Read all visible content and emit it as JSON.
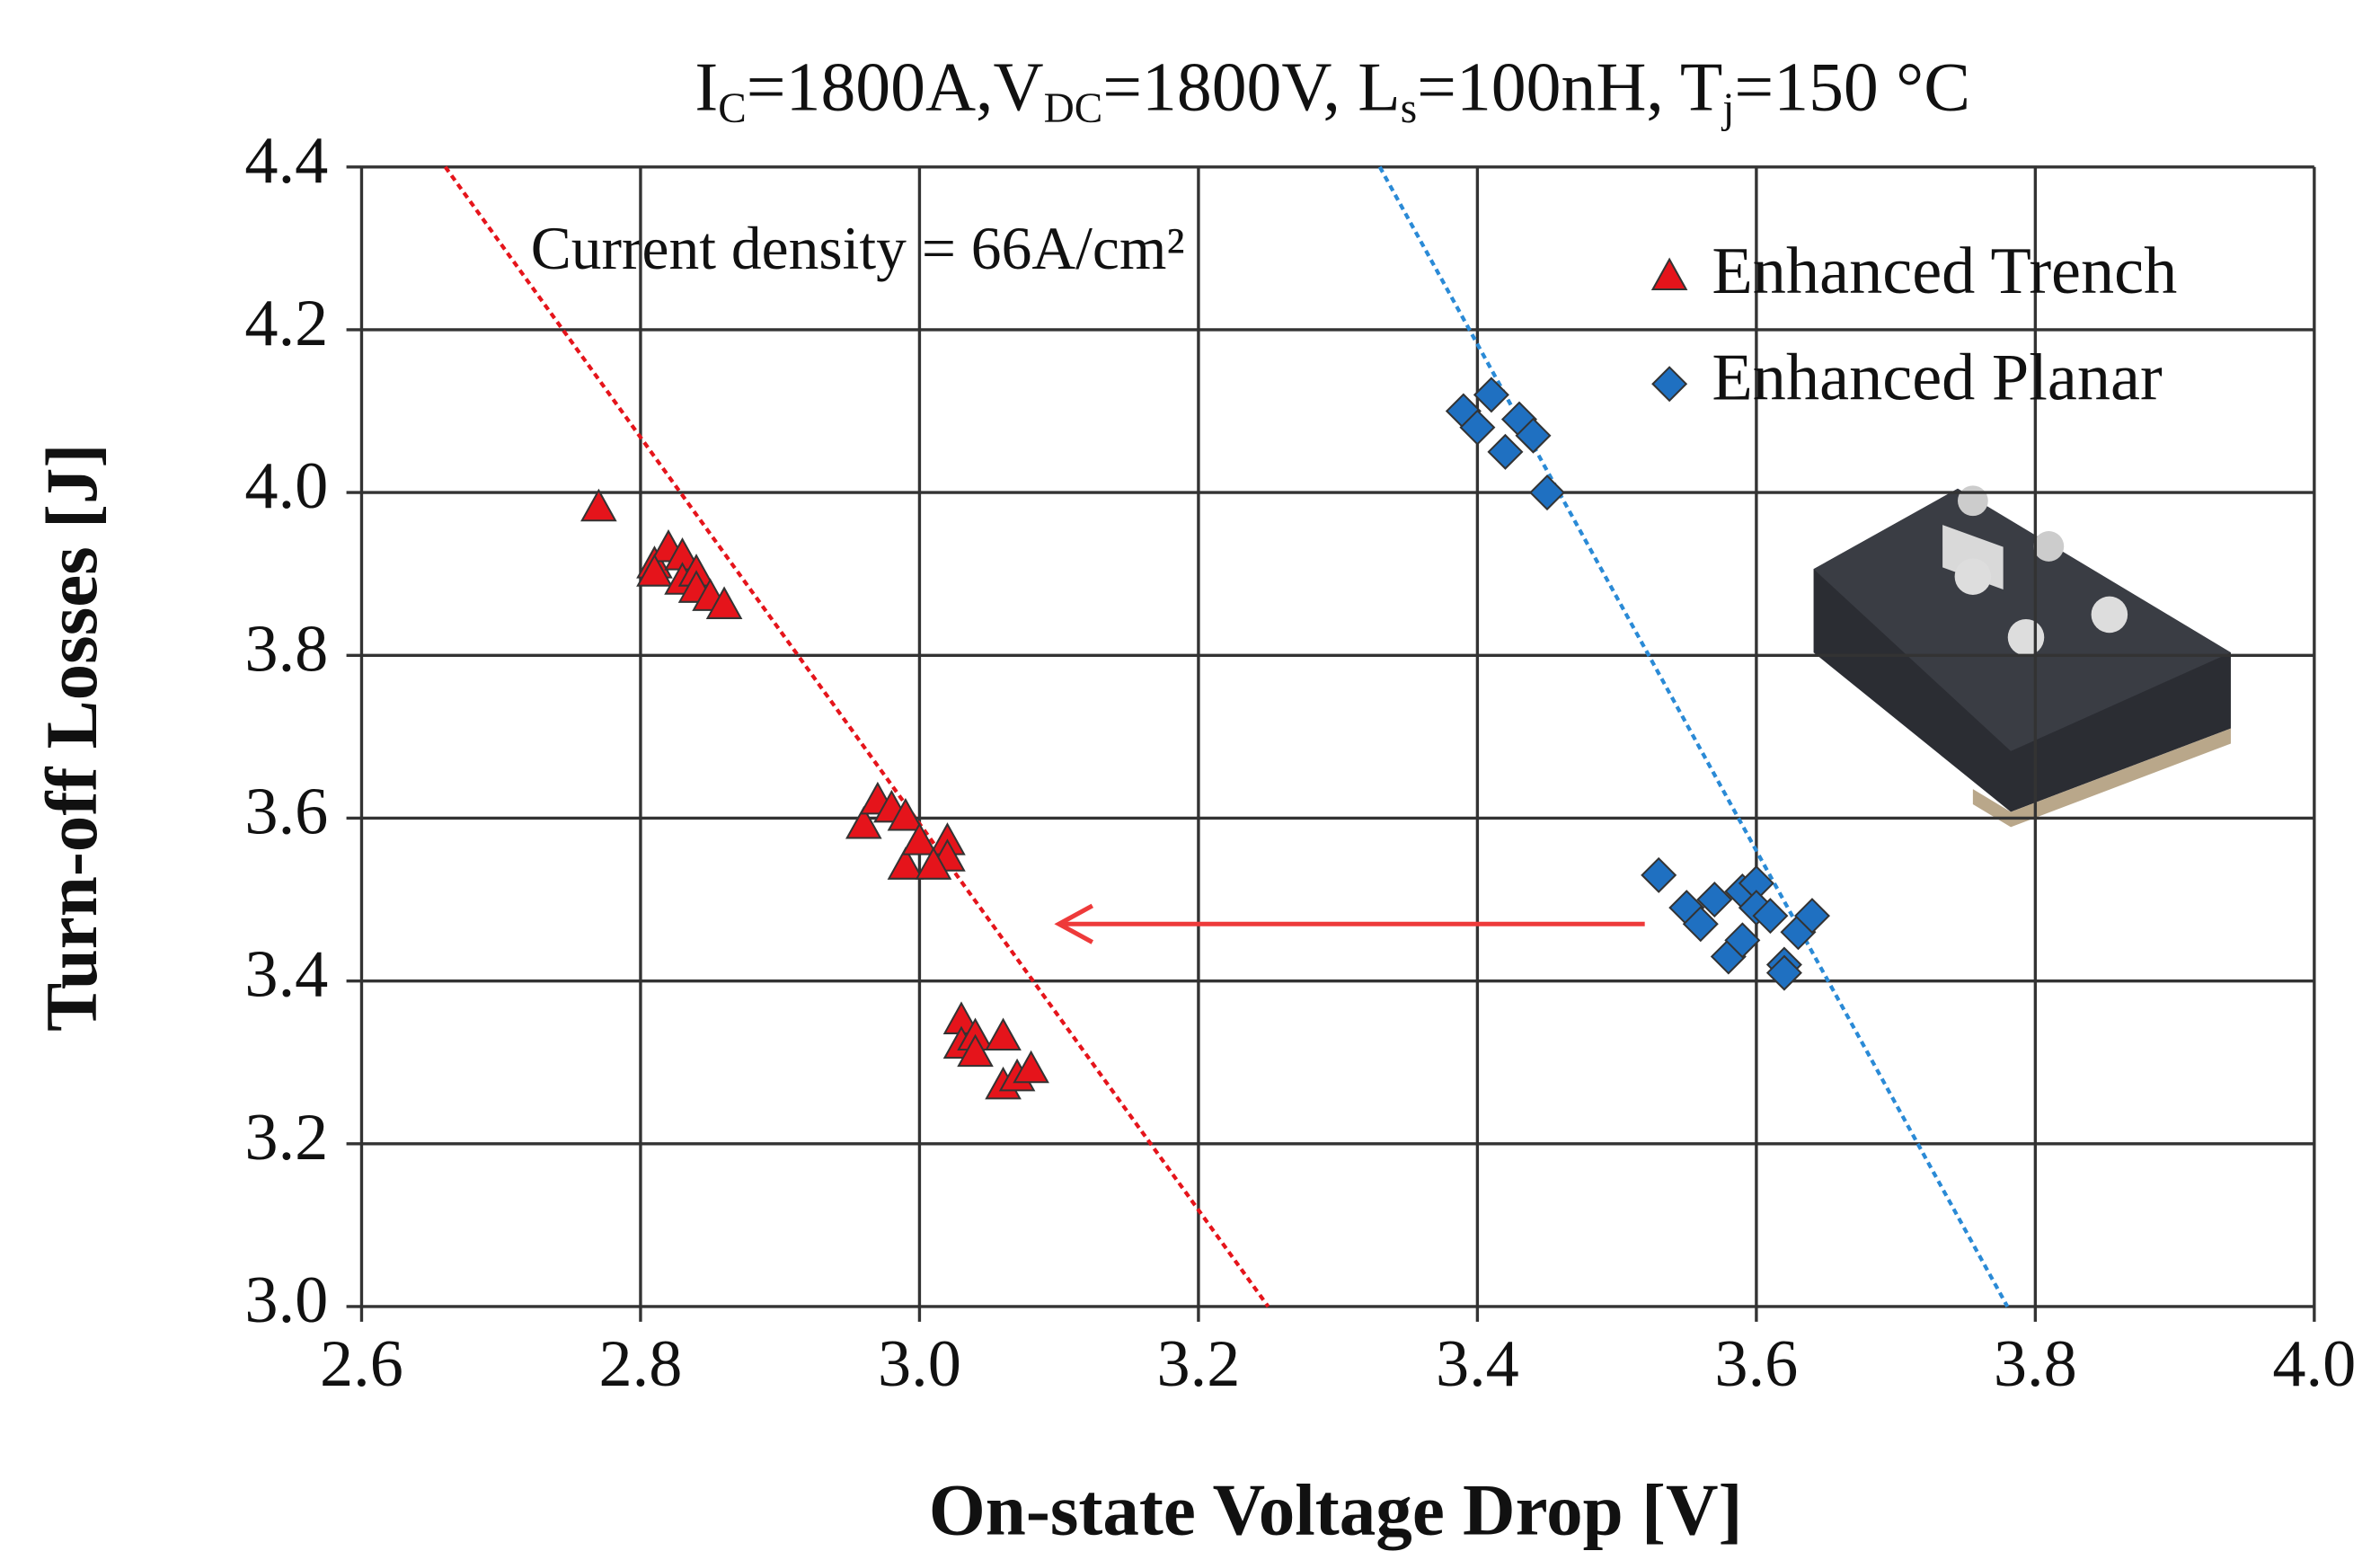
{
  "chart_data": {
    "type": "scatter",
    "title_parts": [
      "I",
      "C",
      "=1800A,V",
      "DC",
      "=1800V, L",
      "s",
      "=100nH, T",
      "j",
      "=150 °C"
    ],
    "annotation": "Current density = 66A/cm²",
    "x_label": "On-state Voltage Drop [V]",
    "y_label": "Turn-off Losses [J]",
    "xlim": [
      2.6,
      4.0
    ],
    "xticks": [
      2.6,
      2.8,
      {
        "value": 3.0,
        "label": "3.0"
      },
      3.2,
      3.4,
      3.6,
      3.8,
      {
        "value": 4.0,
        "label": "4.0"
      }
    ],
    "ylim": [
      3.0,
      4.4
    ],
    "yticks": [
      {
        "value": 3.0,
        "label": "3.0"
      },
      3.2,
      3.4,
      3.6,
      3.8,
      {
        "value": 4.0,
        "label": "4.0"
      },
      4.2,
      4.4
    ],
    "grid": true,
    "legend": "upper right",
    "series": [
      {
        "name": "Enhanced Trench",
        "color": "#e5141b",
        "marker": "triangle",
        "x": [
          2.77,
          2.81,
          2.82,
          2.81,
          2.83,
          2.83,
          2.84,
          2.84,
          2.85,
          2.86,
          2.96,
          2.97,
          2.98,
          2.99,
          2.99,
          3.0,
          3.02,
          3.02,
          3.01,
          3.03,
          3.03,
          3.04,
          3.04,
          3.06,
          3.06,
          3.07,
          3.08
        ],
        "values": [
          3.98,
          3.91,
          3.93,
          3.9,
          3.92,
          3.89,
          3.9,
          3.88,
          3.87,
          3.86,
          3.59,
          3.62,
          3.61,
          3.6,
          3.54,
          3.57,
          3.57,
          3.55,
          3.54,
          3.35,
          3.32,
          3.33,
          3.31,
          3.33,
          3.27,
          3.28,
          3.29
        ]
      },
      {
        "name": "Enhanced Planar",
        "color": "#1f70c1",
        "marker": "diamond",
        "x": [
          3.39,
          3.4,
          3.41,
          3.42,
          3.43,
          3.44,
          3.45,
          3.53,
          3.55,
          3.56,
          3.57,
          3.58,
          3.59,
          3.59,
          3.6,
          3.6,
          3.61,
          3.62,
          3.62,
          3.63,
          3.64
        ],
        "values": [
          4.1,
          4.08,
          4.12,
          4.05,
          4.09,
          4.07,
          4.0,
          3.53,
          3.49,
          3.47,
          3.5,
          3.43,
          3.51,
          3.45,
          3.52,
          3.49,
          3.48,
          3.42,
          3.41,
          3.46,
          3.48
        ]
      }
    ],
    "trendlines": [
      {
        "color": "#e5141b",
        "x": [
          2.66,
          3.25
        ],
        "values": [
          4.4,
          3.0
        ]
      },
      {
        "color": "#2a8ad6",
        "x": [
          3.33,
          3.78
        ],
        "values": [
          4.4,
          3.0
        ]
      }
    ],
    "arrow": {
      "color": "#ee3a3a",
      "x": [
        3.52,
        3.1
      ],
      "values": [
        3.47,
        3.47
      ]
    }
  }
}
